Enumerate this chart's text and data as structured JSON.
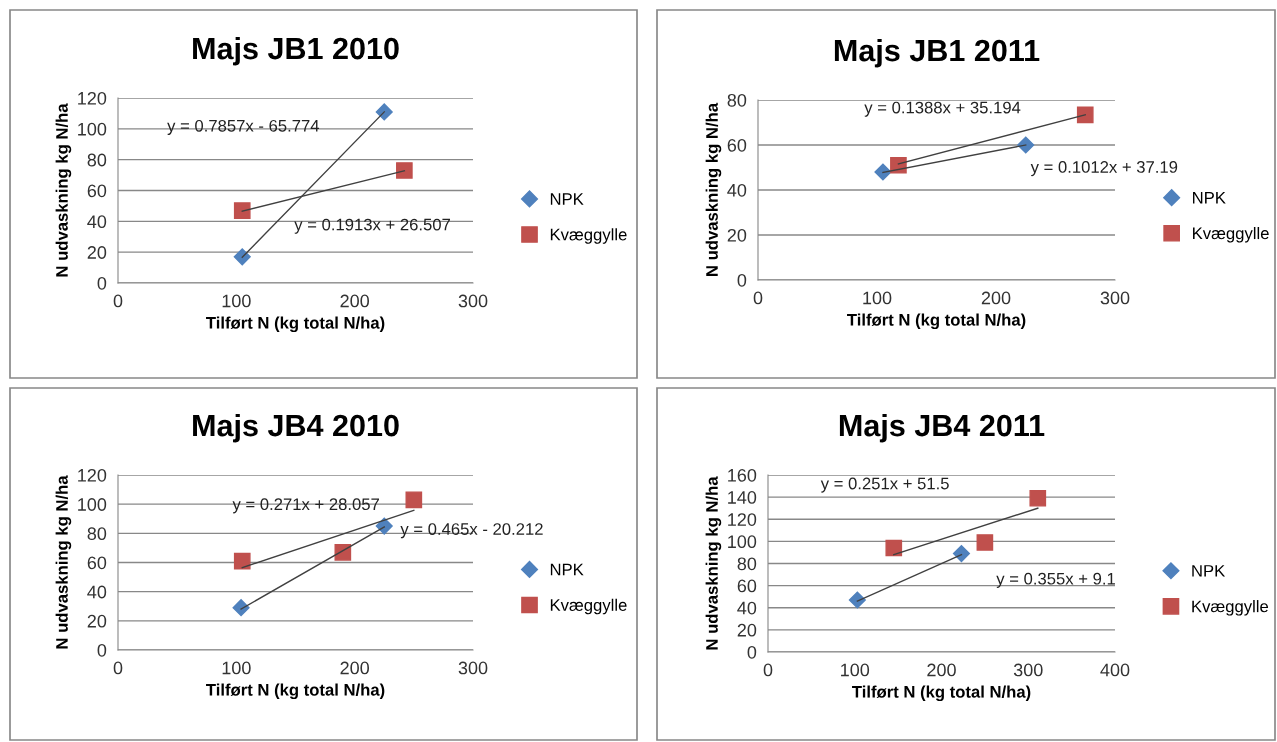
{
  "chart_data": [
    {
      "type": "scatter",
      "title": "Majs JB1 2010",
      "xlabel": "Tilført N (kg total N/ha)",
      "ylabel": "N udvaskning kg N/ha",
      "xlim": [
        0,
        300
      ],
      "xticks": [
        0,
        100,
        200,
        300
      ],
      "ylim": [
        0,
        120
      ],
      "yticks": [
        0,
        20,
        40,
        60,
        80,
        100,
        120
      ],
      "grid": "y",
      "legend": "right",
      "series": [
        {
          "name": "NPK",
          "marker": "diamond",
          "color": "#4f81bd",
          "x": [
            105,
            225
          ],
          "values": [
            17,
            111
          ]
        },
        {
          "name": "Kvæggylle",
          "marker": "square",
          "color": "#c0504d",
          "x": [
            105,
            242
          ],
          "values": [
            47,
            73
          ]
        },
        {
          "type": "line",
          "marker": "none",
          "color": "#404040",
          "x": [
            105,
            225
          ],
          "values": [
            16.7,
            111.0
          ]
        },
        {
          "type": "line",
          "marker": "none",
          "color": "#404040",
          "x": [
            105,
            242
          ],
          "values": [
            46.6,
            72.8
          ]
        }
      ],
      "annotations": [
        "y = 0.7857x - 65.774",
        "y = 0.1913x + 26.507"
      ]
    },
    {
      "type": "scatter",
      "title": "Majs JB1 2011",
      "xlabel": "Tilført N (kg total N/ha)",
      "ylabel": "N udvaskning kg N/ha",
      "xlim": [
        0,
        300
      ],
      "xticks": [
        0,
        100,
        200,
        300
      ],
      "ylim": [
        0,
        80
      ],
      "yticks": [
        0,
        20,
        40,
        60,
        80
      ],
      "grid": "y",
      "legend": "right",
      "series": [
        {
          "name": "NPK",
          "marker": "diamond",
          "color": "#4f81bd",
          "x": [
            105,
            225
          ],
          "values": [
            48,
            60
          ]
        },
        {
          "name": "Kvæggylle",
          "marker": "square",
          "color": "#c0504d",
          "x": [
            118,
            275
          ],
          "values": [
            51,
            73.4
          ]
        },
        {
          "type": "line",
          "marker": "none",
          "color": "#404040",
          "x": [
            105,
            225
          ],
          "values": [
            47.8,
            60.0
          ]
        },
        {
          "type": "line",
          "marker": "none",
          "color": "#404040",
          "x": [
            118,
            275
          ],
          "values": [
            51.6,
            73.4
          ]
        }
      ],
      "annotations": [
        "y = 0.1388x + 35.194",
        "y = 0.1012x + 37.19"
      ]
    },
    {
      "type": "scatter",
      "title": "Majs JB4 2010",
      "xlabel": "Tilført N (kg total N/ha)",
      "ylabel": "N udvaskning kg N/ha",
      "xlim": [
        0,
        300
      ],
      "xticks": [
        0,
        100,
        200,
        300
      ],
      "ylim": [
        0,
        120
      ],
      "yticks": [
        0,
        20,
        40,
        60,
        80,
        100,
        120
      ],
      "grid": "y",
      "legend": "right",
      "series": [
        {
          "name": "NPK",
          "marker": "diamond",
          "color": "#4f81bd",
          "x": [
            104,
            225
          ],
          "values": [
            29,
            85
          ]
        },
        {
          "name": "Kvæggylle",
          "marker": "square",
          "color": "#c0504d",
          "x": [
            105,
            190,
            250
          ],
          "values": [
            61,
            67,
            103
          ]
        },
        {
          "type": "line",
          "marker": "none",
          "color": "#404040",
          "x": [
            104,
            225
          ],
          "values": [
            28.1,
            84.4
          ]
        },
        {
          "type": "line",
          "marker": "none",
          "color": "#404040",
          "x": [
            105,
            250
          ],
          "values": [
            56.5,
            95.8
          ]
        }
      ],
      "annotations": [
        "y = 0.271x + 28.057",
        "y = 0.465x - 20.212"
      ]
    },
    {
      "type": "scatter",
      "title": "Majs JB4 2011",
      "xlabel": "Tilført N (kg total N/ha)",
      "ylabel": "N udvaskning kg N/ha",
      "xlim": [
        0,
        400
      ],
      "xticks": [
        0,
        100,
        200,
        300,
        400
      ],
      "ylim": [
        0,
        160
      ],
      "yticks": [
        0,
        20,
        40,
        60,
        80,
        100,
        120,
        140,
        160
      ],
      "grid": "y",
      "legend": "right",
      "series": [
        {
          "name": "NPK",
          "marker": "diamond",
          "color": "#4f81bd",
          "x": [
            103,
            223
          ],
          "values": [
            47,
            89
          ]
        },
        {
          "name": "Kvæggylle",
          "marker": "square",
          "color": "#c0504d",
          "x": [
            145,
            250,
            311
          ],
          "values": [
            94,
            99,
            139
          ]
        },
        {
          "type": "line",
          "marker": "none",
          "color": "#404040",
          "x": [
            103,
            223
          ],
          "values": [
            46,
            88
          ]
        },
        {
          "type": "line",
          "marker": "none",
          "color": "#404040",
          "x": [
            145,
            311
          ],
          "values": [
            88,
            130
          ]
        }
      ],
      "annotations": [
        "y = 0.251x + 51.5",
        "y = 0.355x + 9.1"
      ]
    }
  ]
}
